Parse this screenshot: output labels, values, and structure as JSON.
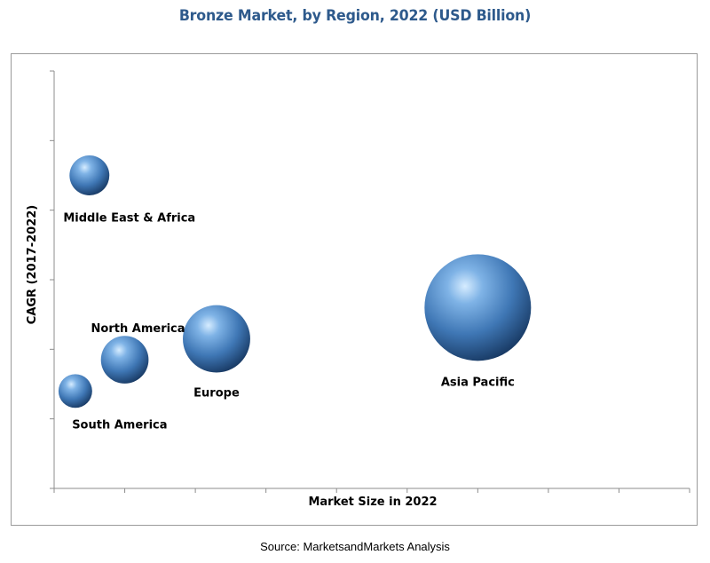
{
  "title": "Bronze Market, by Region, 2022 (USD Billion)",
  "source": "Source: MarketsandMarkets Analysis",
  "colors": {
    "title": "#2e5a8c",
    "bubble_light": "#bfe0ff",
    "bubble_mid": "#4f87c4",
    "bubble_dark": "#1b3f6e"
  },
  "chart_data": {
    "type": "bubble",
    "title": "Bronze Market, by Region, 2022 (USD Billion)",
    "xlabel": "Market Size in 2022",
    "ylabel": "CAGR (2017-2022)",
    "xlim": [
      0,
      9
    ],
    "ylim": [
      0,
      6
    ],
    "grid": false,
    "legend": "none",
    "series": [
      {
        "name": "Middle East & Africa",
        "x": 0.5,
        "y": 4.5,
        "size": 0.35
      },
      {
        "name": "North America",
        "x": 1.0,
        "y": 1.85,
        "size": 0.5
      },
      {
        "name": "South America",
        "x": 0.3,
        "y": 1.4,
        "size": 0.25
      },
      {
        "name": "Europe",
        "x": 2.3,
        "y": 2.15,
        "size": 1.0
      },
      {
        "name": "Asia Pacific",
        "x": 6.0,
        "y": 2.6,
        "size": 2.5
      }
    ]
  }
}
